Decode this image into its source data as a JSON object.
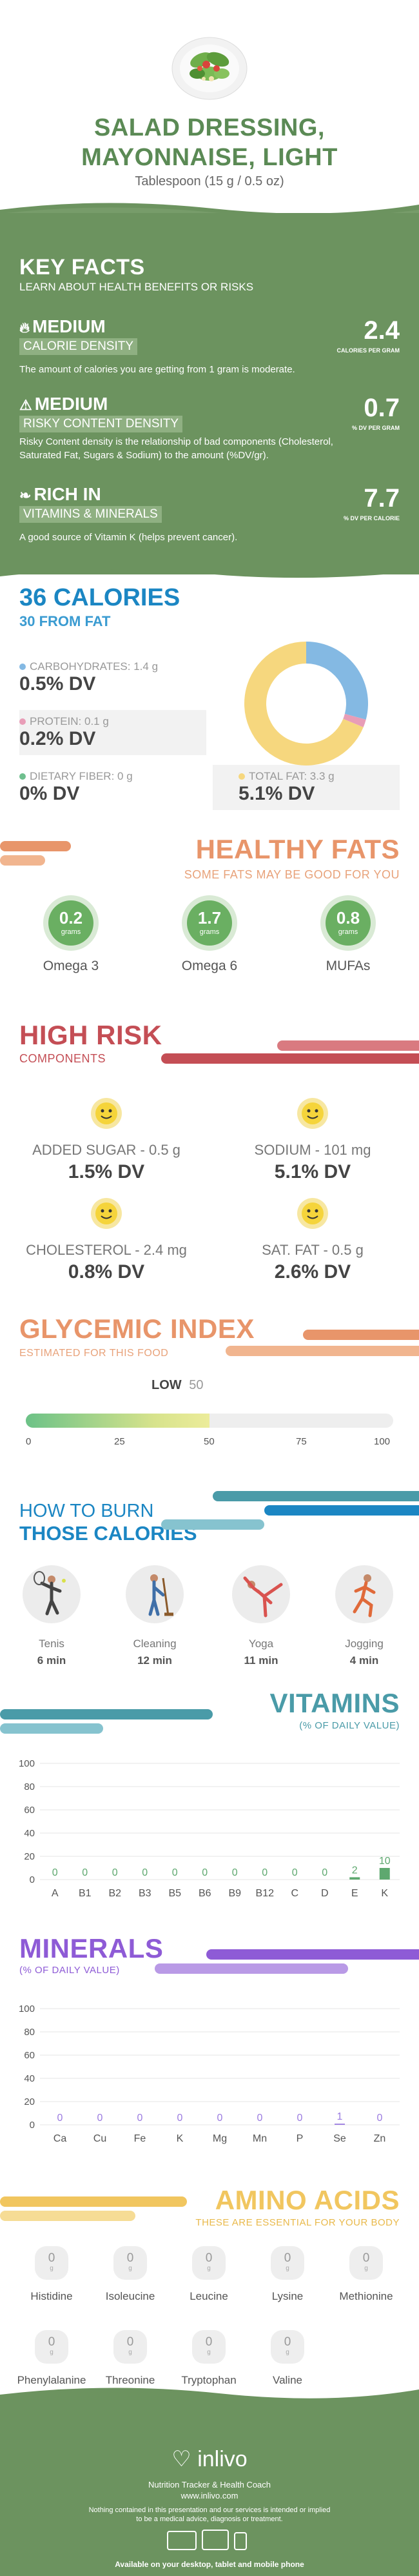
{
  "header": {
    "title_line1": "SALAD DRESSING,",
    "title_line2": "MAYONNAISE, LIGHT",
    "serving": "Tablespoon (15 g / 0.5 oz)"
  },
  "key_facts": {
    "title": "KEY FACTS",
    "subtitle": "LEARN ABOUT HEALTH BENEFITS OR RISKS",
    "facts": [
      {
        "level": "MEDIUM",
        "label": "CALORIE DENSITY",
        "desc": "The amount of calories you are getting from 1 gram is moderate.",
        "value": "2.4",
        "unit": "CALORIES PER GRAM",
        "icon": "flame-icon"
      },
      {
        "level": "MEDIUM",
        "label": "RISKY CONTENT DENSITY",
        "desc": "Risky Content density is the relationship of bad components (Cholesterol, Saturated Fat, Sugars & Sodium) to the amount (%DV/gr).",
        "value": "0.7",
        "unit": "% DV PER GRAM",
        "icon": "warning-icon"
      },
      {
        "level": "RICH  IN",
        "label": "VITAMINS & MINERALS",
        "desc": "A good source of Vitamin K (helps prevent cancer).",
        "value": "7.7",
        "unit": "% DV PER CALORIE",
        "icon": "leaf-icon"
      }
    ]
  },
  "calories": {
    "title": "36 CALORIES",
    "subtitle": "30 FROM FAT",
    "macros": [
      {
        "label": "CARBOHYDRATES: 1.4 g",
        "dv": "0.5% DV",
        "color": "#84b9e3"
      },
      {
        "label": "PROTEIN: 0.1 g",
        "dv": "0.2% DV",
        "color": "#e89db7"
      },
      {
        "label": "DIETARY FIBER: 0 g",
        "dv": "0% DV",
        "color": "#6fbf8e"
      },
      {
        "label": "TOTAL FAT: 3.3 g",
        "dv": "5.1% DV",
        "color": "#f6d77e"
      }
    ],
    "donut_grams": {
      "carbohydrates": 1.4,
      "protein": 0.1,
      "fat": 3.3
    }
  },
  "healthy_fats": {
    "title": "HEALTHY FATS",
    "subtitle": "SOME FATS MAY BE GOOD FOR YOU",
    "items": [
      {
        "value": "0.2",
        "unit": "grams",
        "name": "Omega 3"
      },
      {
        "value": "1.7",
        "unit": "grams",
        "name": "Omega 6"
      },
      {
        "value": "0.8",
        "unit": "grams",
        "name": "MUFAs"
      }
    ]
  },
  "high_risk": {
    "title": "HIGH RISK",
    "subtitle": "COMPONENTS",
    "items": [
      {
        "label": "ADDED SUGAR - 0.5 g",
        "dv": "1.5% DV"
      },
      {
        "label": "SODIUM - 101 mg",
        "dv": "5.1% DV"
      },
      {
        "label": "CHOLESTEROL - 2.4 mg",
        "dv": "0.8% DV"
      },
      {
        "label": "SAT. FAT - 0.5 g",
        "dv": "2.6% DV"
      }
    ]
  },
  "glycemic": {
    "title": "GLYCEMIC INDEX",
    "subtitle": "ESTIMATED FOR THIS FOOD",
    "level": "LOW",
    "value": 50,
    "value_text": "50",
    "ticks": [
      "0",
      "25",
      "50",
      "75",
      "100"
    ]
  },
  "burn": {
    "title_line1": "HOW TO BURN",
    "title_line2": "THOSE CALORIES",
    "activities": [
      {
        "name": "Tenis",
        "time": "6 min"
      },
      {
        "name": "Cleaning",
        "time": "12 min"
      },
      {
        "name": "Yoga",
        "time": "11 min"
      },
      {
        "name": "Jogging",
        "time": "4 min"
      }
    ]
  },
  "vitamins": {
    "title": "VITAMINS",
    "subtitle": "(% OF DAILY VALUE)"
  },
  "minerals": {
    "title": "MINERALS",
    "subtitle": "(% OF DAILY VALUE)"
  },
  "chart_data": [
    {
      "type": "bar",
      "title": "VITAMINS",
      "ylabel": "(% OF DAILY VALUE)",
      "categories": [
        "A",
        "B1",
        "B2",
        "B3",
        "B5",
        "B6",
        "B9",
        "B12",
        "C",
        "D",
        "E",
        "K"
      ],
      "values": [
        0,
        0,
        0,
        0,
        0,
        0,
        0,
        0,
        0,
        0,
        2,
        10
      ],
      "value_labels": [
        "0",
        "0",
        "0",
        "0",
        "0",
        "0",
        "0",
        "0",
        "0",
        "0",
        "2",
        "10"
      ],
      "yticks": [
        "0",
        "20",
        "40",
        "60",
        "80",
        "100"
      ],
      "ylim": [
        0,
        100
      ],
      "color": "#5ea86f"
    },
    {
      "type": "bar",
      "title": "MINERALS",
      "ylabel": "(% OF DAILY VALUE)",
      "categories": [
        "Ca",
        "Cu",
        "Fe",
        "K",
        "Mg",
        "Mn",
        "P",
        "Se",
        "Zn"
      ],
      "values": [
        0,
        0,
        0,
        0,
        0,
        0,
        0,
        1,
        0
      ],
      "value_labels": [
        "0",
        "0",
        "0",
        "0",
        "0",
        "0",
        "0",
        "1",
        "0"
      ],
      "yticks": [
        "0",
        "20",
        "40",
        "60",
        "80",
        "100"
      ],
      "ylim": [
        0,
        100
      ],
      "color": "#9b7be0"
    }
  ],
  "amino": {
    "title": "AMINO ACIDS",
    "subtitle": "THESE ARE ESSENTIAL FOR YOUR BODY",
    "unit": "g",
    "items": [
      {
        "name": "Histidine",
        "value": "0"
      },
      {
        "name": "Isoleucine",
        "value": "0"
      },
      {
        "name": "Leucine",
        "value": "0"
      },
      {
        "name": "Lysine",
        "value": "0"
      },
      {
        "name": "Methionine",
        "value": "0"
      },
      {
        "name": "Phenylalanine",
        "value": "0"
      },
      {
        "name": "Threonine",
        "value": "0"
      },
      {
        "name": "Tryptophan",
        "value": "0"
      },
      {
        "name": "Valine",
        "value": "0"
      }
    ]
  },
  "footer": {
    "brand": "inlivo",
    "tagline": "Nutrition Tracker & Health Coach",
    "url": "www.inlivo.com",
    "disclaimer_line1": "Nothing contained in this presentation and our services is intended or implied",
    "disclaimer_line2": "to be a medical advice, diagnosis or treatment.",
    "devices": "Available on your desktop, tablet and mobile phone"
  },
  "colors": {
    "green": "#6c935f",
    "blue": "#1b86c3",
    "orange": "#e8956a",
    "red": "#c44e55",
    "teal": "#4a9ba8",
    "purple": "#8e5bd6",
    "yellow": "#f1c65f"
  }
}
